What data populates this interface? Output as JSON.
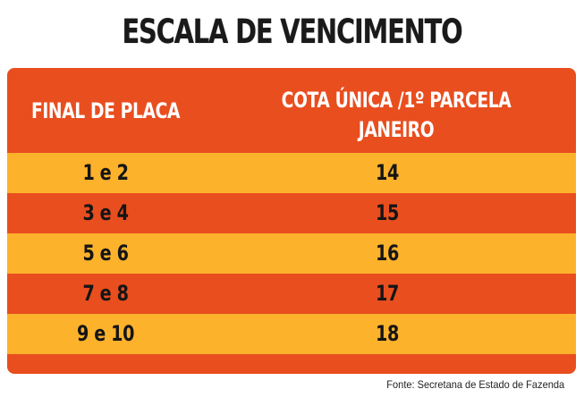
{
  "title": "ESCALA DE VENCIMENTO",
  "table": {
    "header_left": "FINAL DE PLACA",
    "header_right_line1": "COTA ÚNICA /1º PARCELA",
    "header_right_line2": "JANEIRO",
    "rows": [
      {
        "placa": "1 e 2",
        "dia": "14"
      },
      {
        "placa": "3 e 4",
        "dia": "15"
      },
      {
        "placa": "5 e 6",
        "dia": "16"
      },
      {
        "placa": "7 e 8",
        "dia": "17"
      },
      {
        "placa": "9 e 10",
        "dia": "18"
      }
    ]
  },
  "footer": "Fonte: Secretana de Estado de Fazenda",
  "colors": {
    "orange_dark": "#e94e1f",
    "orange_light": "#fdb22c",
    "text_dark": "#151515",
    "header_text": "#ffffff"
  }
}
